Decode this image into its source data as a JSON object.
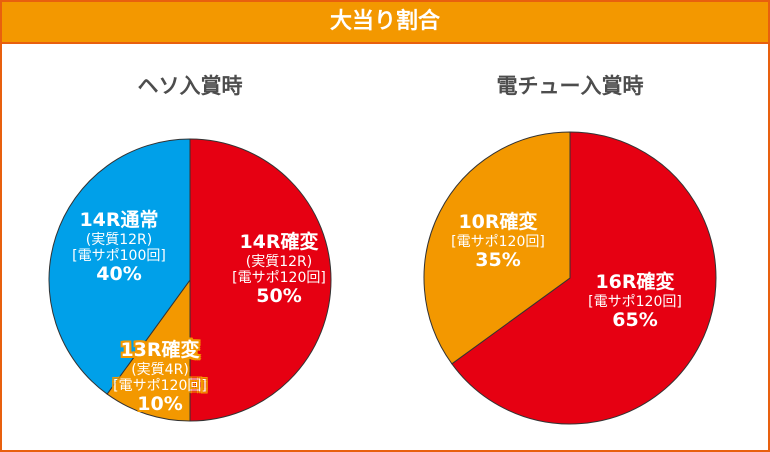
{
  "header": {
    "title": "大当り割合"
  },
  "colors": {
    "red": "#e60012",
    "blue": "#00a0e9",
    "orange": "#f39800",
    "border": "#e8600e"
  },
  "chart_data": [
    {
      "type": "pie",
      "title": "ヘソ入賞時",
      "slices": [
        {
          "name": "14R確変",
          "sub1": "(実質12R)",
          "sub2": "[電サポ120回]",
          "value": 50,
          "percent_label": "50%",
          "color": "#e60012"
        },
        {
          "name": "13R確変",
          "sub1": "(実質4R)",
          "sub2": "[電サポ120回]",
          "value": 10,
          "percent_label": "10%",
          "color": "#f39800"
        },
        {
          "name": "14R通常",
          "sub1": "(実質12R)",
          "sub2": "[電サポ100回]",
          "value": 40,
          "percent_label": "40%",
          "color": "#00a0e9"
        }
      ]
    },
    {
      "type": "pie",
      "title": "電チュー入賞時",
      "slices": [
        {
          "name": "16R確変",
          "sub2": "[電サポ120回]",
          "value": 65,
          "percent_label": "65%",
          "color": "#e60012"
        },
        {
          "name": "10R確変",
          "sub2": "[電サポ120回]",
          "value": 35,
          "percent_label": "35%",
          "color": "#f39800"
        }
      ]
    }
  ]
}
